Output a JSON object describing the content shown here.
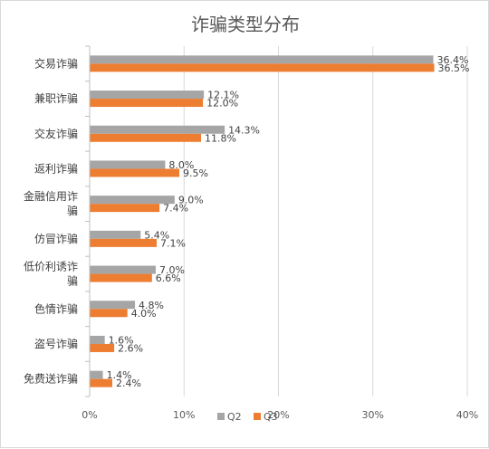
{
  "chart_data": {
    "type": "bar",
    "orientation": "horizontal",
    "title": "诈骗类型分布",
    "categories": [
      [
        "交易诈骗"
      ],
      [
        "兼职诈骗"
      ],
      [
        "交友诈骗"
      ],
      [
        "返利诈骗"
      ],
      [
        "金融信用诈",
        "骗"
      ],
      [
        "仿冒诈骗"
      ],
      [
        "低价利诱诈",
        "骗"
      ],
      [
        "色情诈骗"
      ],
      [
        "盗号诈骗"
      ],
      [
        "免费送诈骗"
      ]
    ],
    "series": [
      {
        "name": "Q2",
        "color": "#a5a5a5",
        "values": [
          36.4,
          12.1,
          14.3,
          8.0,
          9.0,
          5.4,
          7.0,
          4.8,
          1.6,
          1.4
        ],
        "labels": [
          "36.4%",
          "12.1%",
          "14.3%",
          "8.0%",
          "9.0%",
          "5.4%",
          "7.0%",
          "4.8%",
          "1.6%",
          "1.4%"
        ]
      },
      {
        "name": "Q3",
        "color": "#ed7d31",
        "values": [
          36.5,
          12.0,
          11.8,
          9.5,
          7.4,
          7.1,
          6.6,
          4.0,
          2.6,
          2.4
        ],
        "labels": [
          "36.5%",
          "12.0%",
          "11.8%",
          "9.5%",
          "7.4%",
          "7.1%",
          "6.6%",
          "4.0%",
          "2.6%",
          "2.4%"
        ]
      }
    ],
    "xlim": [
      0,
      40
    ],
    "xticks": [
      0,
      10,
      20,
      30,
      40
    ],
    "xtick_labels": [
      "0%",
      "10%",
      "20%",
      "30%",
      "40%"
    ],
    "grid": "vertical",
    "legend": "bottom-center"
  }
}
